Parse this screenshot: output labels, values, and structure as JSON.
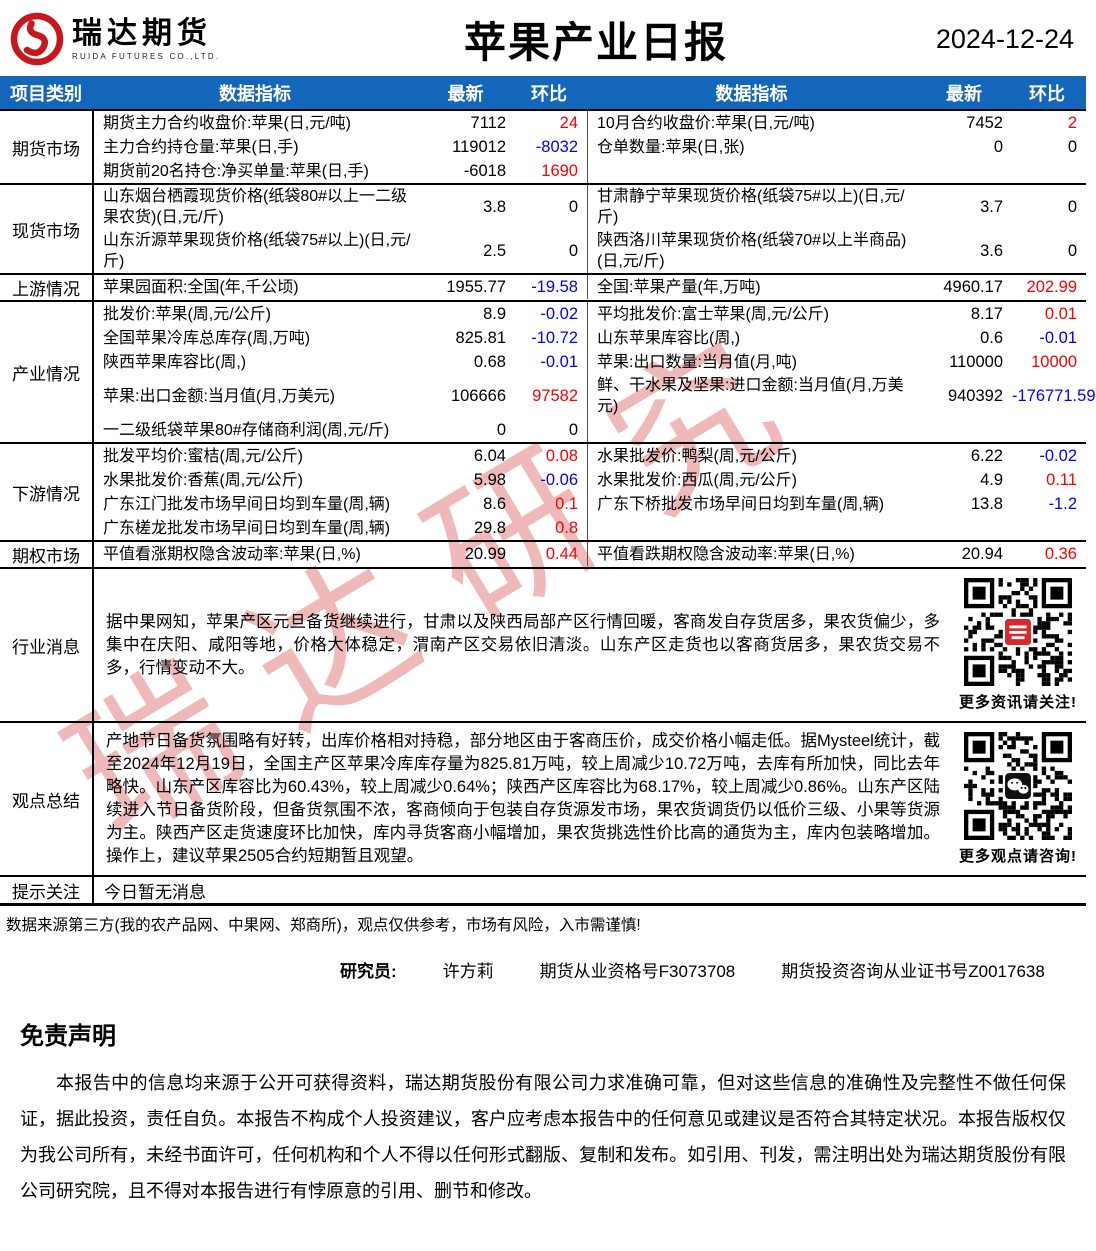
{
  "colors": {
    "header_bg": "#1466bb",
    "header_text": "#ffffff",
    "positive": "#ff0000",
    "negative": "#0000ff",
    "neutral": "#000000",
    "logo_red": "#c8161d",
    "watermark_pink": "#e06666"
  },
  "header": {
    "company": "瑞达期货",
    "company_en": "RUIDA FUTURES CO.,LTD.",
    "title": "苹果产业日报",
    "date": "2024-12-24"
  },
  "table": {
    "columns": {
      "category": "项目类别",
      "indicator": "数据指标",
      "latest": "最新",
      "change": "环比"
    },
    "sections": [
      {
        "category": "期货市场",
        "rows": [
          {
            "l": {
              "label": "期货主力合约收盘价:苹果(日,元/吨)",
              "latest": "7112",
              "change": "24"
            },
            "r": {
              "label": "10月合约收盘价:苹果(日,元/吨)",
              "latest": "7452",
              "change": "2"
            }
          },
          {
            "l": {
              "label": "主力合约持仓量:苹果(日,手)",
              "latest": "119012",
              "change": "-8032"
            },
            "r": {
              "label": "仓单数量:苹果(日,张)",
              "latest": "0",
              "change": "0"
            }
          },
          {
            "l": {
              "label": "期货前20名持仓:净买单量:苹果(日,手)",
              "latest": "-6018",
              "change": "1690"
            },
            "r": null
          }
        ]
      },
      {
        "category": "现货市场",
        "rows": [
          {
            "l": {
              "label": "山东烟台栖霞现货价格(纸袋80#以上一二级果农货)(日,元/斤)",
              "latest": "3.8",
              "change": "0"
            },
            "r": {
              "label": "甘肃静宁苹果现货价格(纸袋75#以上)(日,元/斤)",
              "latest": "3.7",
              "change": "0"
            }
          },
          {
            "l": {
              "label": "山东沂源苹果现货价格(纸袋75#以上)(日,元/斤)",
              "latest": "2.5",
              "change": "0"
            },
            "r": {
              "label": "陕西洛川苹果现货价格(纸袋70#以上半商品)(日,元/斤)",
              "latest": "3.6",
              "change": "0"
            }
          }
        ]
      },
      {
        "category": "上游情况",
        "rows": [
          {
            "l": {
              "label": "苹果园面积:全国(年,千公顷)",
              "latest": "1955.77",
              "change": "-19.58"
            },
            "r": {
              "label": "全国:苹果产量(年,万吨)",
              "latest": "4960.17",
              "change": "202.99"
            }
          }
        ]
      },
      {
        "category": "产业情况",
        "rows": [
          {
            "l": {
              "label": "批发价:苹果(周,元/公斤)",
              "latest": "8.9",
              "change": "-0.02"
            },
            "r": {
              "label": "平均批发价:富士苹果(周,元/公斤)",
              "latest": "8.17",
              "change": "0.01"
            }
          },
          {
            "l": {
              "label": "全国苹果冷库总库存(周,万吨)",
              "latest": "825.81",
              "change": "-10.72"
            },
            "r": {
              "label": "山东苹果库容比(周,)",
              "latest": "0.6",
              "change": "-0.01"
            }
          },
          {
            "l": {
              "label": "陕西苹果库容比(周,)",
              "latest": "0.68",
              "change": "-0.01"
            },
            "r": {
              "label": "苹果:出口数量:当月值(月,吨)",
              "latest": "110000",
              "change": "10000"
            }
          },
          {
            "l": {
              "label": "苹果:出口金额:当月值(月,万美元)",
              "latest": "106666",
              "change": "97582"
            },
            "r": {
              "label": "鲜、干水果及坚果:进口金额:当月值(月,万美元)",
              "latest": "940392",
              "change": "-176771.59"
            }
          },
          {
            "l": {
              "label": "一二级纸袋苹果80#存储商利润(周,元/斤)",
              "latest": "0",
              "change": "0"
            },
            "r": null
          }
        ]
      },
      {
        "category": "下游情况",
        "rows": [
          {
            "l": {
              "label": "批发平均价:蜜桔(周,元/公斤)",
              "latest": "6.04",
              "change": "0.08"
            },
            "r": {
              "label": "水果批发价:鸭梨(周,元/公斤)",
              "latest": "6.22",
              "change": "-0.02"
            }
          },
          {
            "l": {
              "label": "水果批发价:香蕉(周,元/公斤)",
              "latest": "5.98",
              "change": "-0.06"
            },
            "r": {
              "label": "水果批发价:西瓜(周,元/公斤)",
              "latest": "4.9",
              "change": "0.11"
            }
          },
          {
            "l": {
              "label": "广东江门批发市场早间日均到车量(周,辆)",
              "latest": "8.6",
              "change": "0.1"
            },
            "r": {
              "label": "广东下桥批发市场早间日均到车量(周,辆)",
              "latest": "13.8",
              "change": "-1.2"
            }
          },
          {
            "l": {
              "label": "广东槎龙批发市场早间日均到车量(周,辆)",
              "latest": "29.8",
              "change": "0.8"
            },
            "r": null
          }
        ]
      },
      {
        "category": "期权市场",
        "rows": [
          {
            "l": {
              "label": "平值看涨期权隐含波动率:苹果(日,%)",
              "latest": "20.99",
              "change": "0.44"
            },
            "r": {
              "label": "平值看跌期权隐含波动率:苹果(日,%)",
              "latest": "20.94",
              "change": "0.36"
            }
          }
        ]
      }
    ],
    "messages": [
      {
        "category": "行业消息",
        "text": "据中果网知，苹果产区元旦备货继续进行，甘肃以及陕西局部产区行情回暖，客商发自存货居多，果农货偏少，多集中在庆阳、咸阳等地，价格大体稳定，渭南产区交易依旧清淡。山东产区走货也以客商货居多，果农货交易不多，行情变动不大。",
        "qr_caption": "更多资讯请关注!",
        "qr_center": "red-badge"
      },
      {
        "category": "观点总结",
        "text": "产地节日备货氛围略有好转，出库价格相对持稳，部分地区由于客商压价，成交价格小幅走低。据Mysteel统计，截至2024年12月19日，全国主产区苹果冷库库存量为825.81万吨，较上周减少10.72万吨，去库有所加快，同比去年略快。山东产区库容比为60.43%，较上周减少0.64%；陕西产区库容比为68.17%，较上周减少0.86%。山东产区陆续进入节日备货阶段，但备货氛围不浓，客商倾向于包装自存货源发市场，果农货调货仍以低价三级、小果等货源为主。陕西产区走货速度环比加快，库内寻货客商小幅增加，果农货挑选性价比高的通货为主，库内包装略增加。操作上，建议苹果2505合约短期暂且观望。",
        "qr_caption": "更多观点请咨询!",
        "qr_center": "wechat"
      }
    ],
    "notice": {
      "category": "提示关注",
      "text": "今日暂无消息"
    }
  },
  "footer": {
    "source": "数据来源第三方(我的农产品网、中果网、郑商所)，观点仅供参考，市场有风险，入市需谨慎!",
    "researcher_label": "研究员:",
    "researcher_name": "许方莉",
    "qualification_no": "期货从业资格号F3073708",
    "advisory_no": "期货投资咨询从业证书号Z0017638"
  },
  "disclaimer": {
    "title": "免责声明",
    "text": "本报告中的信息均来源于公开可获得资料，瑞达期货股份有限公司力求准确可靠，但对这些信息的准确性及完整性不做任何保证，据此投资，责任自负。本报告不构成个人投资建议，客户应考虑本报告中的任何意见或建议是否符合其特定状况。本报告版权仅为我公司所有，未经书面许可，任何机构和个人不得以任何形式翻版、复制和发布。如引用、刊发，需注明出处为瑞达期货股份有限公司研究院，且不得对本报告进行有悖原意的引用、删节和修改。"
  },
  "watermark": {
    "text": "瑞达研究"
  }
}
